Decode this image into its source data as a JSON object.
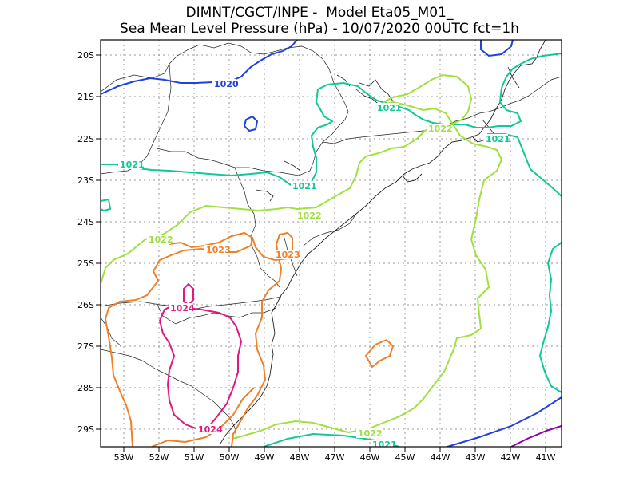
{
  "title": {
    "line1": "DIMNT/CGCT/INPE -  Model Eta05_M01_",
    "line2": "Sea Mean Level Pressure (hPa) - 10/07/2020 00UTC fct=1h"
  },
  "axes": {
    "lat_labels": [
      "20S",
      "21S",
      "22S",
      "23S",
      "24S",
      "25S",
      "26S",
      "27S",
      "28S",
      "29S"
    ],
    "lon_labels": [
      "53W",
      "52W",
      "51W",
      "50W",
      "49W",
      "48W",
      "47W",
      "46W",
      "45W",
      "44W",
      "43W",
      "42W",
      "41W"
    ]
  },
  "contour_labels": [
    "1020",
    "1021",
    "1021",
    "1021",
    "1021",
    "1021",
    "1022",
    "1022",
    "1022",
    "1022",
    "1023",
    "1023",
    "1024",
    "1024"
  ],
  "colors": {
    "c1020": "#2040e0",
    "c1021": "#10c898",
    "c1022": "#a0e040",
    "c1023": "#f08028",
    "c1024": "#e01880",
    "c1025": "#9000b0"
  }
}
